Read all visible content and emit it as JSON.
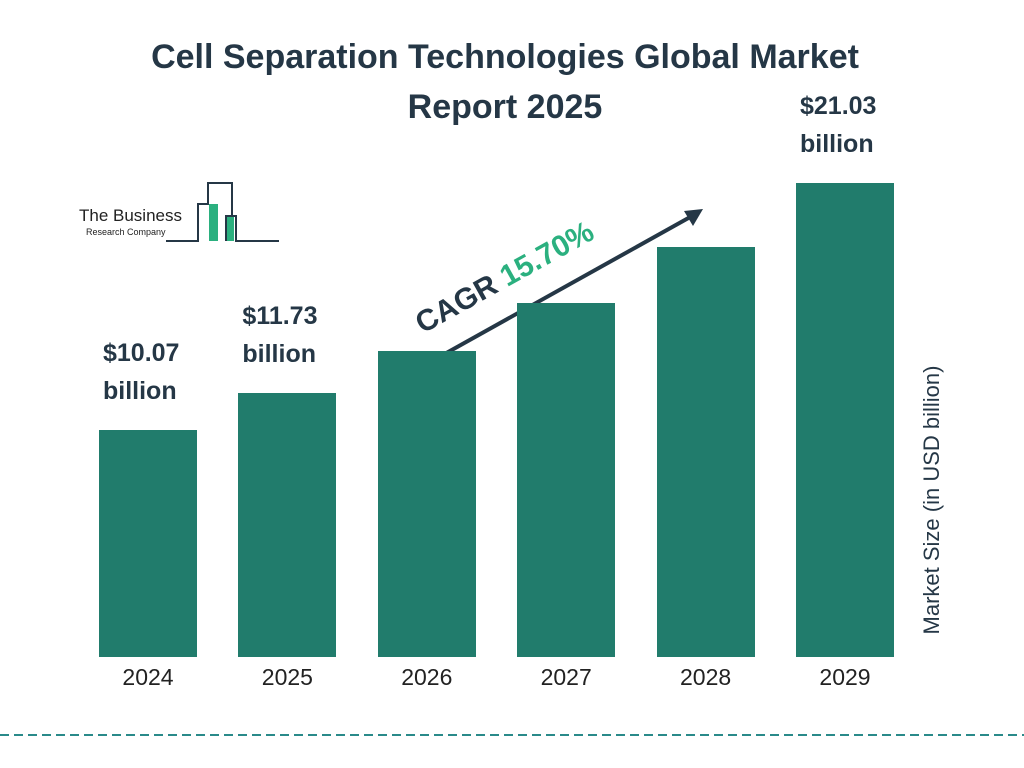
{
  "chart_data": {
    "type": "bar",
    "title": "Cell Separation Technologies Global Market Report 2025",
    "categories": [
      "2024",
      "2025",
      "2026",
      "2027",
      "2028",
      "2029"
    ],
    "values": [
      10.07,
      11.73,
      13.57,
      15.7,
      18.17,
      21.03
    ],
    "value_labels": [
      "$10.07 billion",
      "$11.73 billion",
      null,
      null,
      null,
      "$21.03 billion"
    ],
    "color": "#217c6c",
    "y_axis_label": "Market Size (in USD billion)",
    "annotation": {
      "label": "CAGR",
      "value": "15.70%"
    },
    "logo": {
      "line1": "The Business",
      "line2": "Research Company"
    }
  }
}
